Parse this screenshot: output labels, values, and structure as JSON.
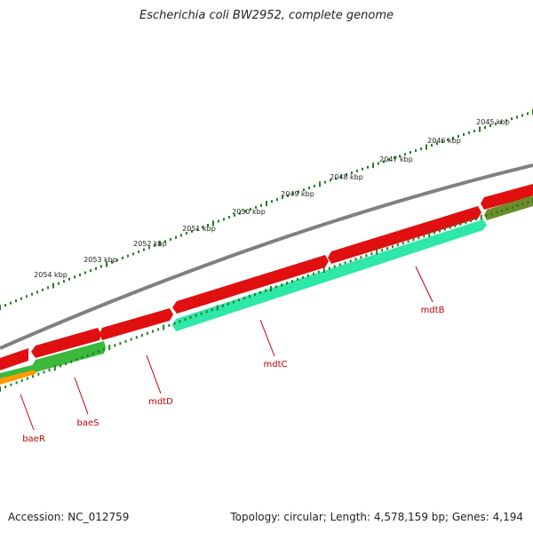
{
  "title": "Escherichia coli BW2952, complete genome",
  "footer": {
    "accession": "Accession: NC_012759",
    "summary": "Topology: circular; Length: 4,578,159 bp; Genes: 4,194"
  },
  "colors": {
    "backbone": "#808080",
    "forward_red": "#e01010",
    "mint": "#2ee8a8",
    "green": "#3cb83c",
    "olive": "#6e8c2a",
    "orange": "#ff9a00",
    "ruler": "#1f7f1f",
    "gene_label": "#c00000"
  },
  "ruler_labels": [
    "2045 kbp",
    "2046 kbp",
    "2047 kbp",
    "2048 kbp",
    "2049 kbp",
    "2050 kbp",
    "2051 kbp",
    "2052 kbp",
    "2053 kbp",
    "2054 kbp"
  ],
  "genes": [
    {
      "name": "mdtB"
    },
    {
      "name": "mdtC"
    },
    {
      "name": "mdtD"
    },
    {
      "name": "baeS"
    },
    {
      "name": "baeR"
    }
  ]
}
